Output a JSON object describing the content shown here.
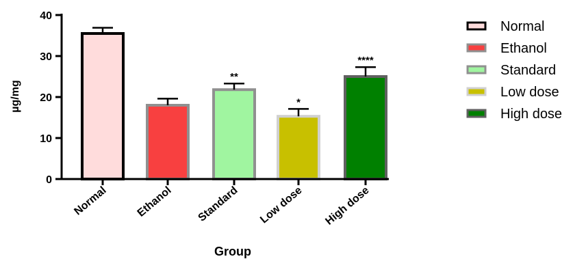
{
  "chart_data": {
    "type": "bar",
    "xlabel": "Group",
    "ylabel": "µg/mg",
    "ylim": [
      0,
      40
    ],
    "yticks": [
      0,
      10,
      20,
      30,
      40
    ],
    "categories": [
      "Normal",
      "Ethanol",
      "Standard",
      "Low dose",
      "High dose"
    ],
    "values": [
      35.5,
      18.0,
      21.8,
      15.3,
      25.0
    ],
    "errors": [
      1.4,
      1.6,
      1.5,
      1.8,
      2.3
    ],
    "significance": [
      "",
      "",
      "**",
      "*",
      "****"
    ],
    "fill_colors": [
      "#ffdcdc",
      "#f84040",
      "#a0f5a0",
      "#c8c000",
      "#008000"
    ],
    "border_colors": [
      "#000000",
      "#909090",
      "#909090",
      "#d0d0d0",
      "#606060"
    ],
    "legend": {
      "position": "right",
      "entries": [
        "Normal",
        "Ethanol",
        "Standard",
        "Low dose",
        "High dose"
      ]
    },
    "grid": false
  }
}
